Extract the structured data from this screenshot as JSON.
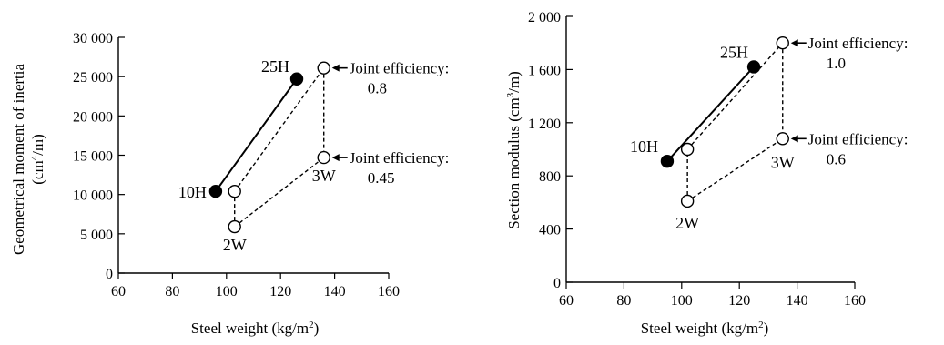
{
  "chart_data": [
    {
      "type": "scatter",
      "xlabel_main": "Steel weight (kg/m",
      "xlabel_sup": "2",
      "xlabel_end": ")",
      "ylabel_line1": "Geometrical moment of inertia",
      "ylabel_line2_pre": "(cm",
      "ylabel_sup": "4",
      "ylabel_line2_post": "/m)",
      "xlim": [
        60,
        160
      ],
      "ylim": [
        0,
        30000
      ],
      "x_ticks": [
        60,
        80,
        100,
        120,
        140,
        160
      ],
      "x_tick_labels": [
        "60",
        "80",
        "100",
        "120",
        "140",
        "160"
      ],
      "y_ticks": [
        0,
        5000,
        10000,
        15000,
        20000,
        25000,
        30000
      ],
      "y_tick_labels": [
        "0",
        "5 000",
        "10 000",
        "15 000",
        "20 000",
        "25 000",
        "30 000"
      ],
      "points": [
        {
          "id": "10H",
          "label": "10H",
          "x": 96,
          "y": 10400,
          "filled": true
        },
        {
          "id": "25H",
          "label": "25H",
          "x": 126,
          "y": 24700,
          "filled": true
        },
        {
          "id": "2W",
          "label": "2W",
          "x": 103,
          "y": 5900,
          "filled": false
        },
        {
          "id": "2Wb",
          "label": "",
          "x": 103,
          "y": 10400,
          "filled": false
        },
        {
          "id": "3W",
          "label": "3W",
          "x": 136,
          "y": 14700,
          "filled": false
        },
        {
          "id": "3Wt",
          "label": "",
          "x": 136,
          "y": 26100,
          "filled": false
        }
      ],
      "solid_lines": [
        [
          "10H",
          "25H"
        ]
      ],
      "dashed_lines": [
        [
          "2W",
          "2Wb"
        ],
        [
          "2Wb",
          "3Wt"
        ],
        [
          "3Wt",
          "3W"
        ],
        [
          "2W",
          "3W"
        ]
      ],
      "annotations": [
        {
          "target": "3Wt",
          "line1": "Joint efficiency:",
          "line2": "0.8"
        },
        {
          "target": "3W",
          "line1": "Joint efficiency:",
          "line2": "0.45"
        }
      ]
    },
    {
      "type": "scatter",
      "xlabel_main": "Steel weight (kg/m",
      "xlabel_sup": "2",
      "xlabel_end": ")",
      "ylabel_pre": "Section modulus (cm",
      "ylabel_sup": "3",
      "ylabel_post": "/m)",
      "xlim": [
        60,
        160
      ],
      "ylim": [
        0,
        2000
      ],
      "x_ticks": [
        60,
        80,
        100,
        120,
        140,
        160
      ],
      "x_tick_labels": [
        "60",
        "80",
        "100",
        "120",
        "140",
        "160"
      ],
      "y_ticks": [
        0,
        400,
        800,
        1200,
        1600,
        2000
      ],
      "y_tick_labels": [
        "0",
        "400",
        "800",
        "1 200",
        "1 600",
        "2 000"
      ],
      "points": [
        {
          "id": "10H",
          "label": "10H",
          "x": 95,
          "y": 910,
          "filled": true
        },
        {
          "id": "25H",
          "label": "25H",
          "x": 125,
          "y": 1620,
          "filled": true
        },
        {
          "id": "2W",
          "label": "2W",
          "x": 102,
          "y": 610,
          "filled": false
        },
        {
          "id": "2Wb",
          "label": "",
          "x": 102,
          "y": 1000,
          "filled": false
        },
        {
          "id": "3W",
          "label": "3W",
          "x": 135,
          "y": 1080,
          "filled": false
        },
        {
          "id": "3Wt",
          "label": "",
          "x": 135,
          "y": 1800,
          "filled": false
        }
      ],
      "solid_lines": [
        [
          "10H",
          "25H"
        ]
      ],
      "dashed_lines": [
        [
          "2W",
          "2Wb"
        ],
        [
          "2Wb",
          "3Wt"
        ],
        [
          "3Wt",
          "3W"
        ],
        [
          "2W",
          "3W"
        ]
      ],
      "annotations": [
        {
          "target": "3Wt",
          "line1": "Joint efficiency:",
          "line2": "1.0"
        },
        {
          "target": "3W",
          "line1": "Joint efficiency:",
          "line2": "0.6"
        }
      ]
    }
  ]
}
